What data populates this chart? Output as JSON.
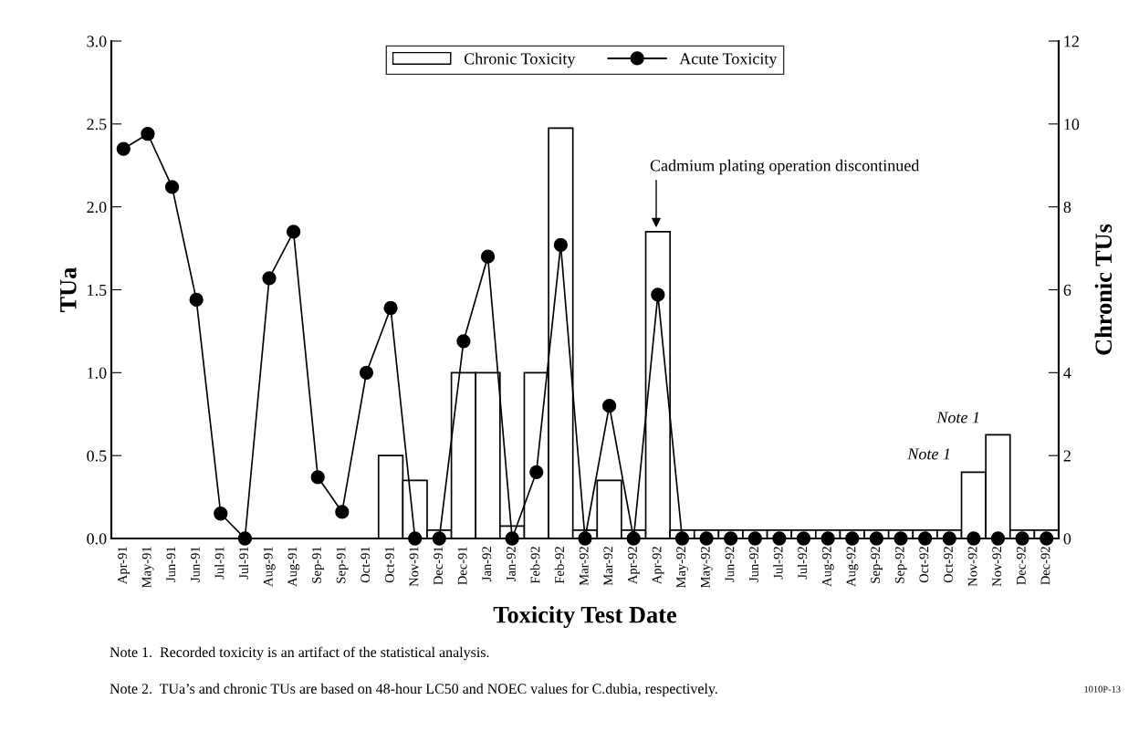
{
  "chart_data": {
    "type": "bar",
    "categories": [
      "Apr-91",
      "May-91",
      "Jun-91",
      "Jun-91",
      "Jul-91",
      "Jul-91",
      "Aug-91",
      "Aug-91",
      "Sep-91",
      "Sep-91",
      "Oct-91",
      "Oct-91",
      "Nov-91",
      "Dec-91",
      "Dec-91",
      "Jan-92",
      "Jan-92",
      "Feb-92",
      "Feb-92",
      "Mar-92",
      "Mar-92",
      "Apr-92",
      "Apr-92",
      "May-92",
      "May-92",
      "Jun-92",
      "Jun-92",
      "Jul-92",
      "Jul-92",
      "Aug-92",
      "Aug-92",
      "Sep-92",
      "Sep-92",
      "Oct-92",
      "Oct-92",
      "Nov-92",
      "Nov-92",
      "Dec-92",
      "Dec-92"
    ],
    "series": [
      {
        "name": "Chronic Toxicity",
        "axis": "y2",
        "color": "#ffffff",
        "values": [
          null,
          null,
          null,
          null,
          null,
          null,
          null,
          null,
          null,
          null,
          null,
          2.0,
          1.4,
          0.2,
          4.0,
          4.0,
          0.3,
          4.0,
          9.9,
          0.2,
          1.4,
          0.2,
          7.4,
          0.2,
          0.2,
          0.2,
          0.2,
          0.2,
          0.2,
          0.2,
          0.2,
          0.2,
          0.2,
          0.2,
          0.2,
          1.6,
          2.5,
          0.2,
          0.2
        ]
      },
      {
        "name": "Acute Toxicity",
        "type": "line",
        "color": "#000000",
        "values": [
          2.35,
          2.44,
          2.12,
          1.44,
          0.15,
          0,
          1.57,
          1.85,
          0.37,
          0.16,
          1.0,
          1.39,
          0,
          0,
          1.19,
          1.7,
          0,
          0.4,
          1.77,
          0,
          0.8,
          0,
          1.47,
          0,
          0,
          0,
          0,
          0,
          0,
          0,
          0,
          0,
          0,
          0,
          0,
          0,
          0,
          0,
          0
        ]
      }
    ],
    "xlabel": "Toxicity Test Date",
    "ylabel": "TUa",
    "y2label": "Chronic TUs",
    "ylim": [
      0,
      3
    ],
    "yticks": [
      {
        "value": 0,
        "label": "0.0"
      },
      {
        "value": 0.5,
        "label": "0.5"
      },
      {
        "value": 1,
        "label": "1.0"
      },
      {
        "value": 1.5,
        "label": "1.5"
      },
      {
        "value": 2,
        "label": "2.0"
      },
      {
        "value": 2.5,
        "label": "2.5"
      },
      {
        "value": 3,
        "label": "3.0"
      }
    ],
    "y2lim": [
      0,
      12
    ],
    "y2ticks": [
      0,
      2,
      4,
      6,
      8,
      10,
      12
    ],
    "marker": "circle",
    "legend": "top",
    "grid": false,
    "annotations": [
      "Cadmium plating operation discontinued",
      "Note 1",
      "Note 1",
      "Note 1.  Recorded toxicity is an artifact of the statistical analysis.",
      "Note 2.  TUa’s and chronic TUs are based on 48-hour LC50 and NOEC values for C.dubia, respectively.",
      "1010P-13"
    ]
  }
}
